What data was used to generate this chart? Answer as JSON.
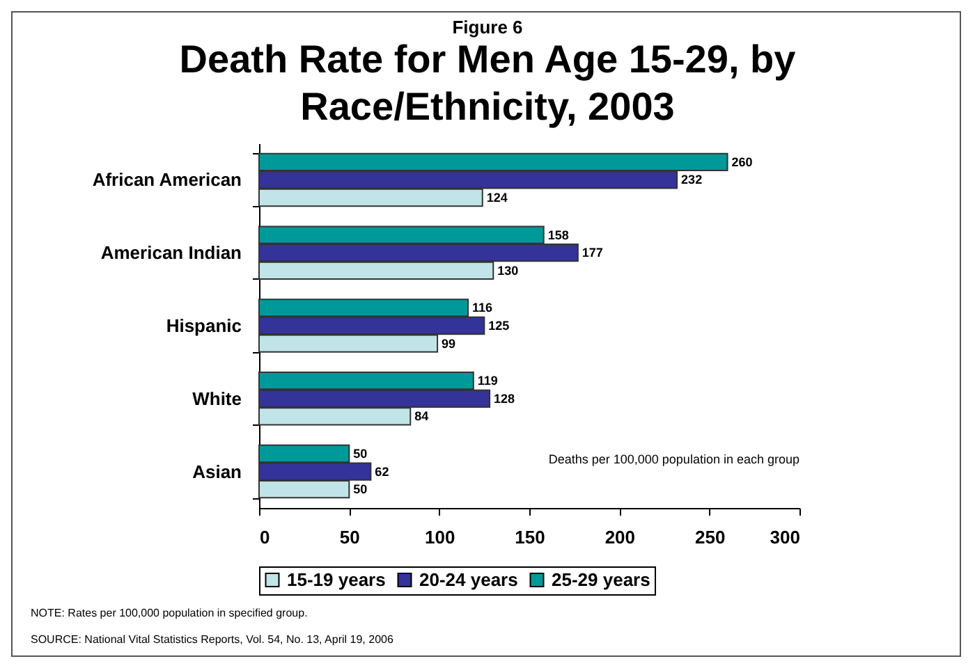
{
  "chart_data": {
    "type": "bar",
    "orientation": "horizontal",
    "subtitle": "Figure 6",
    "title": "Death Rate for Men Age 15-29, by Race/Ethnicity, 2003",
    "categories": [
      "African American",
      "American Indian",
      "Hispanic",
      "White",
      "Asian"
    ],
    "series": [
      {
        "name": "15-19 years",
        "color": "#c0e4e8",
        "values": [
          124,
          130,
          99,
          84,
          50
        ]
      },
      {
        "name": "20-24 years",
        "color": "#333399",
        "values": [
          232,
          177,
          125,
          128,
          62
        ]
      },
      {
        "name": "25-29 years",
        "color": "#009999",
        "values": [
          260,
          158,
          116,
          119,
          50
        ]
      }
    ],
    "xlim": [
      0,
      300
    ],
    "xticks": [
      0,
      50,
      100,
      150,
      200,
      250,
      300
    ],
    "grid": false,
    "legend": "bottom",
    "data_labels": true,
    "annotations": [
      "Deaths per 100,000 population in each group",
      "NOTE: Rates per 100,000 population in specified group.",
      "SOURCE: National Vital Statistics Reports, Vol. 54, No. 13, April 19, 2006"
    ]
  }
}
